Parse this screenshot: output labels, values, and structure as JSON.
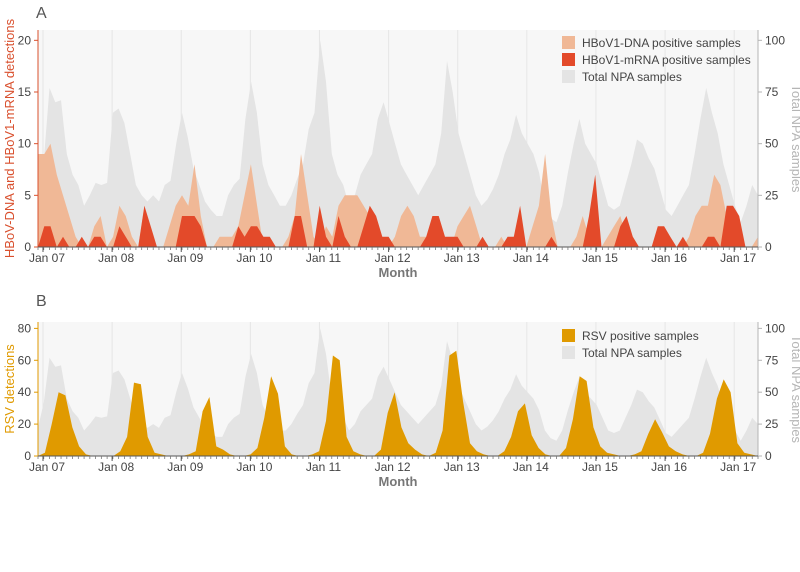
{
  "colors": {
    "dna": "#f0b896",
    "mrna": "#e34a2a",
    "rsv": "#e09a00",
    "total": "#e4e4e4",
    "axis_left_a": "#d9502e",
    "axis_left_b": "#e09a00",
    "axis_right": "#b5b5b5",
    "xlabel": "#777777"
  },
  "chart_data": [
    {
      "panel": "A",
      "type": "area",
      "xlabel": "Month",
      "ylabel_left": "HBoV-DNA and HBoV1-mRNA detections",
      "ylabel_right": "Total NPA samples",
      "ylim_left": [
        0,
        21
      ],
      "ylim_right": [
        0,
        105
      ],
      "yticks_left": [
        "0",
        "5",
        "10",
        "15",
        "20"
      ],
      "yticks_right": [
        "0",
        "25",
        "50",
        "75",
        "100"
      ],
      "x_ticks": [
        "Jan 07",
        "Jan 08",
        "Jan 09",
        "Jan 10",
        "Jan 11",
        "Jan 12",
        "Jan 13",
        "Jan 14",
        "Jan 15",
        "Jan 16",
        "Jan 17"
      ],
      "legend": [
        "HBoV1-DNA positive samples",
        "HBoV1-mRNA positive samples",
        "Total NPA samples"
      ],
      "series": [
        {
          "name": "Total NPA samples",
          "axis": "right",
          "values": [
            22,
            42,
            77,
            70,
            71,
            45,
            35,
            30,
            20,
            25,
            31,
            30,
            31,
            65,
            67,
            60,
            45,
            30,
            25,
            22,
            25,
            22,
            30,
            32,
            50,
            65,
            53,
            38,
            30,
            22,
            18,
            15,
            15,
            25,
            30,
            33,
            62,
            80,
            65,
            40,
            30,
            25,
            20,
            20,
            25,
            33,
            40,
            57,
            65,
            100,
            80,
            45,
            35,
            30,
            20,
            25,
            35,
            40,
            45,
            62,
            70,
            60,
            50,
            40,
            35,
            30,
            25,
            30,
            35,
            40,
            55,
            90,
            75,
            55,
            45,
            35,
            25,
            20,
            23,
            28,
            35,
            45,
            52,
            64,
            55,
            50,
            45,
            36,
            20,
            14,
            12,
            20,
            36,
            50,
            62,
            50,
            45,
            40,
            30,
            20,
            18,
            20,
            30,
            40,
            52,
            50,
            43,
            38,
            28,
            18,
            15,
            20,
            25,
            30,
            45,
            62,
            77,
            65,
            55,
            40,
            30,
            20,
            12,
            20,
            30,
            25
          ]
        },
        {
          "name": "HBoV1-DNA positive samples",
          "axis": "left",
          "values": [
            9,
            9,
            10,
            7,
            5,
            3,
            1,
            0,
            0,
            2,
            3,
            0,
            1,
            4,
            3,
            1,
            0,
            4,
            0,
            0,
            0,
            2,
            4,
            5,
            4,
            8,
            3,
            0,
            0,
            1,
            1,
            1,
            2,
            5,
            8,
            4,
            0,
            1,
            0,
            0,
            1,
            3,
            9,
            5,
            1,
            0,
            2,
            1,
            4,
            5,
            5,
            5,
            4,
            3,
            1,
            0,
            0,
            1,
            3,
            4,
            3,
            1,
            1,
            1,
            0,
            0,
            0,
            2,
            3,
            4,
            2,
            0,
            0,
            0,
            1,
            0,
            0,
            0,
            0,
            2,
            4,
            9,
            3,
            0,
            0,
            0,
            1,
            3,
            1,
            0,
            0,
            1,
            2,
            3,
            1,
            1,
            0,
            0,
            0,
            1,
            1,
            0,
            0,
            0,
            1,
            3,
            4,
            4,
            7,
            6,
            3,
            1,
            0,
            0,
            0,
            1
          ]
        },
        {
          "name": "HBoV1-mRNA positive samples",
          "axis": "left",
          "values": [
            0,
            2,
            2,
            0,
            1,
            0,
            0,
            1,
            0,
            1,
            1,
            0,
            0,
            2,
            1,
            0,
            0,
            4,
            2,
            0,
            0,
            0,
            0,
            3,
            3,
            3,
            2,
            0,
            0,
            0,
            0,
            0,
            2,
            1,
            2,
            2,
            1,
            1,
            0,
            0,
            0,
            3,
            3,
            0,
            0,
            4,
            1,
            0,
            3,
            1,
            0,
            0,
            2,
            4,
            3,
            1,
            1,
            0,
            0,
            0,
            0,
            0,
            1,
            3,
            3,
            1,
            1,
            1,
            0,
            0,
            0,
            1,
            0,
            0,
            0,
            1,
            1,
            4,
            0,
            0,
            0,
            0,
            1,
            0,
            0,
            0,
            0,
            0,
            3,
            7,
            0,
            0,
            0,
            2,
            3,
            1,
            0,
            0,
            0,
            2,
            2,
            1,
            0,
            1,
            0,
            0,
            0,
            1,
            1,
            0,
            4,
            4,
            3,
            0,
            0,
            0
          ]
        }
      ]
    },
    {
      "panel": "B",
      "type": "area",
      "xlabel": "Month",
      "ylabel_left": "RSV detections",
      "ylabel_right": "Total NPA samples",
      "ylim_left": [
        0,
        84
      ],
      "ylim_right": [
        0,
        105
      ],
      "yticks_left": [
        "0",
        "20",
        "40",
        "60",
        "80"
      ],
      "yticks_right": [
        "0",
        "25",
        "50",
        "75",
        "100"
      ],
      "x_ticks": [
        "Jan 07",
        "Jan 08",
        "Jan 09",
        "Jan 10",
        "Jan 11",
        "Jan 12",
        "Jan 13",
        "Jan 14",
        "Jan 15",
        "Jan 16",
        "Jan 17"
      ],
      "legend": [
        "RSV positive samples",
        "Total NPA samples"
      ],
      "series": [
        {
          "name": "Total NPA samples",
          "axis": "right",
          "values": [
            22,
            42,
            77,
            70,
            71,
            45,
            35,
            30,
            20,
            25,
            31,
            30,
            31,
            65,
            67,
            60,
            45,
            30,
            25,
            22,
            25,
            22,
            30,
            32,
            50,
            65,
            53,
            38,
            30,
            22,
            18,
            15,
            15,
            25,
            30,
            33,
            62,
            80,
            65,
            40,
            30,
            25,
            20,
            20,
            25,
            33,
            40,
            57,
            65,
            100,
            80,
            45,
            35,
            30,
            20,
            25,
            35,
            40,
            45,
            62,
            70,
            60,
            50,
            40,
            35,
            30,
            25,
            30,
            35,
            40,
            55,
            90,
            75,
            55,
            45,
            35,
            25,
            20,
            23,
            28,
            35,
            45,
            52,
            64,
            55,
            50,
            45,
            36,
            20,
            14,
            12,
            20,
            36,
            50,
            62,
            50,
            45,
            40,
            30,
            20,
            18,
            20,
            30,
            40,
            52,
            50,
            43,
            38,
            28,
            18,
            15,
            20,
            25,
            30,
            45,
            62,
            77,
            65,
            55,
            40,
            30,
            20,
            12,
            20,
            30,
            25
          ]
        },
        {
          "name": "RSV positive samples",
          "axis": "left",
          "values": [
            0,
            2,
            20,
            40,
            38,
            18,
            6,
            1,
            0,
            0,
            0,
            0,
            3,
            12,
            46,
            45,
            12,
            2,
            1,
            0,
            0,
            0,
            1,
            3,
            28,
            37,
            6,
            4,
            1,
            0,
            0,
            1,
            5,
            24,
            50,
            39,
            6,
            1,
            0,
            0,
            1,
            3,
            22,
            63,
            60,
            12,
            3,
            1,
            0,
            0,
            4,
            27,
            40,
            18,
            8,
            4,
            1,
            0,
            2,
            16,
            63,
            66,
            34,
            8,
            3,
            1,
            0,
            0,
            3,
            12,
            28,
            33,
            13,
            5,
            1,
            0,
            0,
            5,
            23,
            50,
            47,
            18,
            6,
            2,
            1,
            0,
            0,
            1,
            3,
            14,
            23,
            15,
            6,
            3,
            1,
            0,
            0,
            2,
            14,
            36,
            48,
            40,
            8,
            2,
            1,
            0
          ]
        }
      ]
    }
  ]
}
